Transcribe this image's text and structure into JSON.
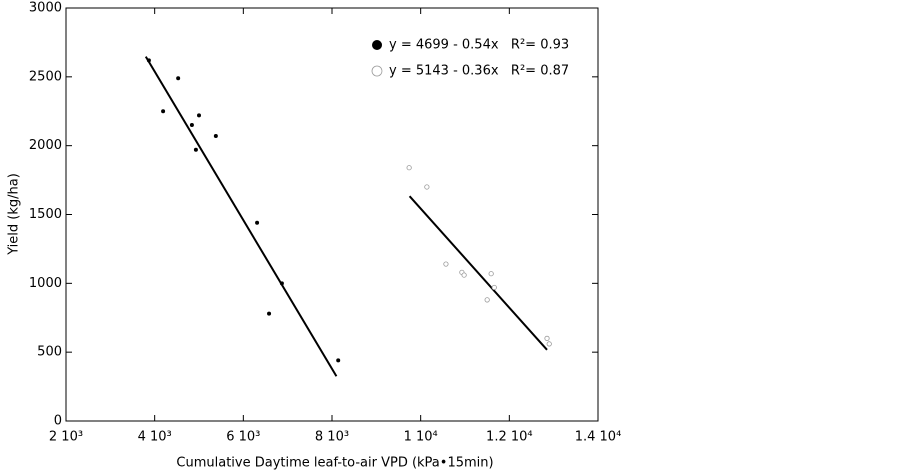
{
  "chart_data": {
    "type": "scatter",
    "x_label": "Cumulative Daytime leaf-to-air VPD (kPa•15min)",
    "y_label": "Yield (kg/ha)",
    "xlim": [
      2000,
      14000
    ],
    "xticks": [
      {
        "value": 2000,
        "label": "2 10³"
      },
      {
        "value": 4000,
        "label": "4 10³"
      },
      {
        "value": 6000,
        "label": "6 10³"
      },
      {
        "value": 8000,
        "label": "8 10³"
      },
      {
        "value": 10000,
        "label": "1 10⁴"
      },
      {
        "value": 12000,
        "label": "1.2 10⁴"
      },
      {
        "value": 14000,
        "label": "1.4 10⁴"
      }
    ],
    "ylim": [
      0,
      3000
    ],
    "yticks": [
      0,
      500,
      1000,
      1500,
      2000,
      2500,
      3000
    ],
    "legend": "upper right",
    "series": [
      {
        "name": "y = 4699 - 0.54x   R²= 0.93",
        "color": "#000000",
        "marker": "filled",
        "x": [
          3870,
          4190,
          4530,
          4840,
          4930,
          5000,
          5380,
          6310,
          6870,
          6580,
          8140
        ],
        "values": [
          2620,
          2250,
          2490,
          2150,
          1970,
          2220,
          2070,
          1440,
          1000,
          780,
          440
        ],
        "fit": {
          "x": [
            3800,
            8100
          ],
          "values": [
            2647,
            325
          ]
        }
      },
      {
        "name": "y = 5143 - 0.36x   R²= 0.87",
        "color": "#999999",
        "marker": "open",
        "x": [
          9740,
          10140,
          10570,
          10930,
          10980,
          11590,
          11500,
          11660,
          12850,
          12900
        ],
        "values": [
          1840,
          1700,
          1140,
          1080,
          1060,
          1070,
          880,
          970,
          600,
          560
        ],
        "fit": {
          "x": [
            9750,
            12850
          ],
          "values": [
            1633,
            517
          ]
        }
      }
    ]
  }
}
